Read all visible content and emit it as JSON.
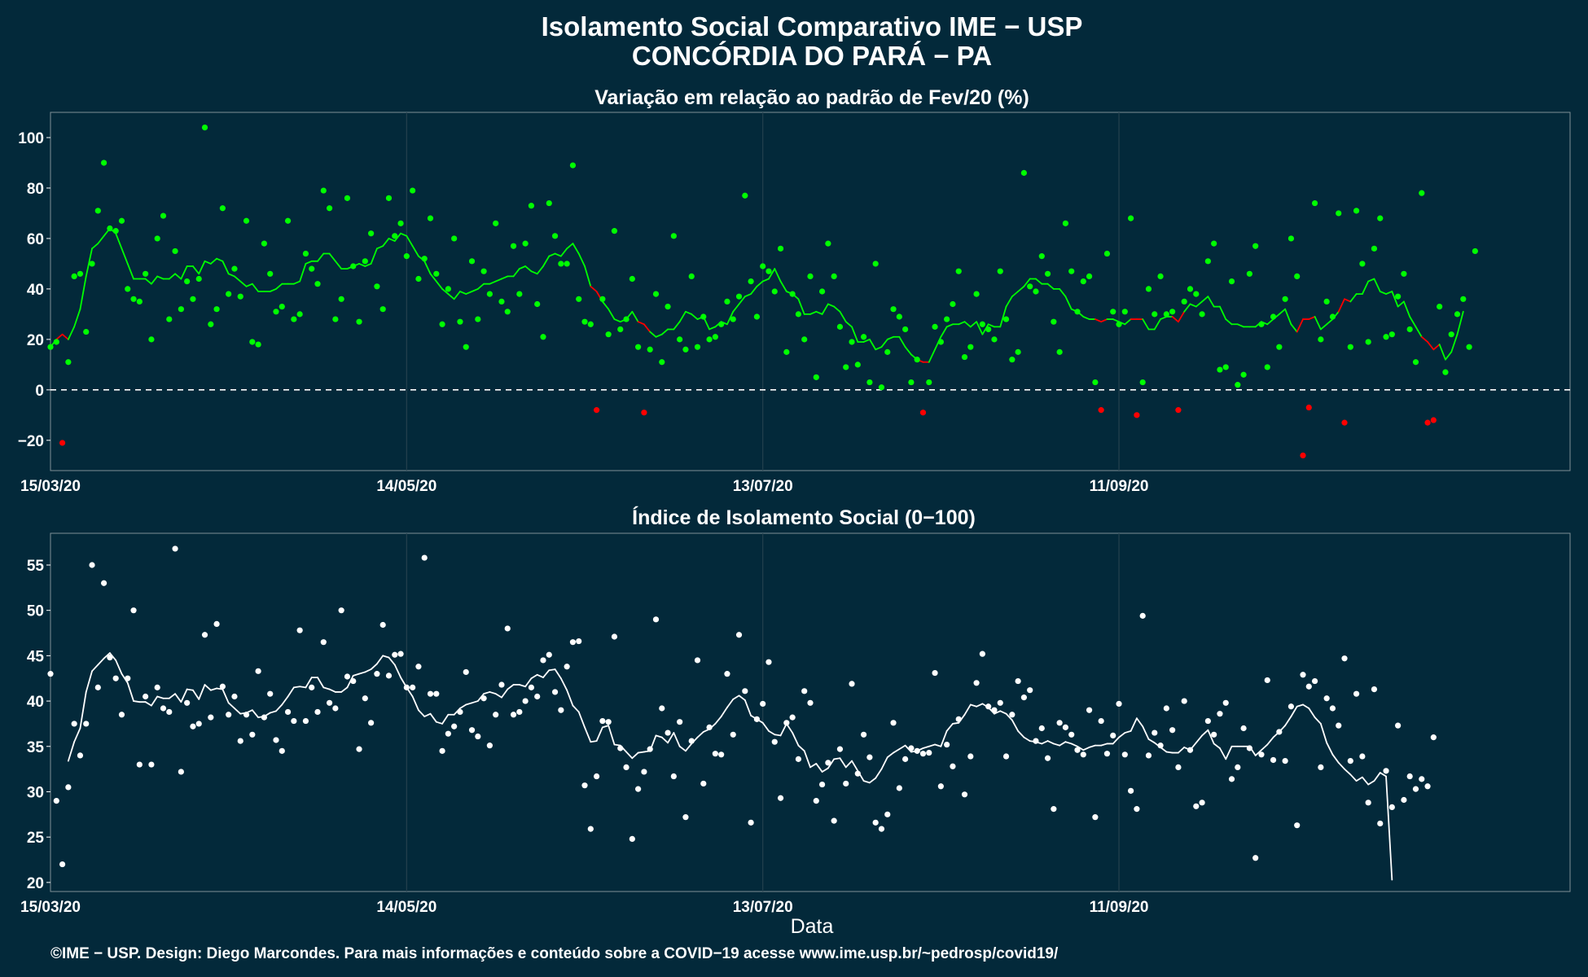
{
  "title_line1": "Isolamento Social Comparativo IME − USP",
  "title_line2": "CONCÓRDIA DO PARÁ − PA",
  "footer": "©IME − USP. Design: Diego Marcondes. Para mais informações e conteúdo sobre a COVID−19 acesse www.ime.usp.br/~pedrosp/covid19/",
  "colors": {
    "background": "#03293a",
    "positive": "#00ff00",
    "negative": "#ff0000",
    "index": "#ffffff",
    "grid": "#24404e"
  },
  "chart_data": [
    {
      "type": "scatter",
      "title": "Variação em relação ao padrão de Fev/20 (%)",
      "xlabel": "",
      "ylabel": "",
      "x_start": "2020-03-15",
      "x_end": "2020-11-26",
      "xticks": [
        "15/03/20",
        "14/05/20",
        "13/07/20",
        "11/09/20"
      ],
      "ylim": [
        -32,
        110
      ],
      "yticks": [
        -20,
        0,
        20,
        40,
        60,
        80,
        100
      ],
      "reference_line": 0,
      "grid": true,
      "series": [
        {
          "kind": "points",
          "values": [
            17,
            19,
            -21,
            11,
            45,
            46,
            23,
            50,
            71,
            90,
            64,
            63,
            67,
            40,
            36,
            35,
            46,
            20,
            60,
            69,
            28,
            55,
            32,
            43,
            36,
            44,
            104,
            26,
            32,
            72,
            38,
            48,
            37,
            67,
            19,
            18,
            58,
            46,
            31,
            33,
            67,
            28,
            30,
            54,
            48,
            42,
            79,
            72,
            28,
            36,
            76,
            49,
            27,
            51,
            62,
            41,
            32,
            76,
            61,
            66,
            53,
            79,
            44,
            52,
            68,
            46,
            26,
            40,
            60,
            27,
            17,
            51,
            28,
            47,
            38,
            66,
            35,
            31,
            57,
            38,
            58,
            73,
            34,
            21,
            74,
            61,
            50,
            50,
            89,
            36,
            27,
            26,
            -8,
            36,
            22,
            63,
            24,
            28,
            44,
            17,
            -9,
            16,
            38,
            11,
            33,
            61,
            20,
            16,
            45,
            17,
            29,
            20,
            21,
            26,
            35,
            28,
            37,
            77,
            43,
            29,
            49,
            47,
            39,
            56,
            15,
            38,
            30,
            20,
            45,
            5,
            39,
            58,
            45,
            25,
            9,
            19,
            10,
            21,
            3,
            50,
            1,
            15,
            32,
            29,
            24,
            3,
            12,
            -9,
            3,
            25,
            19,
            28,
            34,
            47,
            13,
            17,
            38,
            26,
            24,
            20,
            47,
            28,
            12,
            15,
            86,
            41,
            39,
            53,
            46,
            27,
            15,
            66,
            47,
            31,
            43,
            45,
            3,
            -8,
            54,
            31,
            26,
            31,
            68,
            -10,
            3,
            40,
            30,
            45,
            30,
            31,
            -8,
            35,
            40,
            38,
            30,
            51,
            58,
            8,
            9,
            43,
            2,
            6,
            46,
            57,
            26,
            9,
            29,
            17,
            36,
            60,
            45,
            -26,
            -7,
            74,
            20,
            35,
            29,
            70,
            -13,
            17,
            71,
            50,
            19,
            56,
            68,
            21,
            22,
            37,
            46,
            24,
            11,
            78,
            -13,
            -12,
            33,
            7,
            22,
            30,
            36,
            17,
            55
          ]
        },
        {
          "kind": "line",
          "name": "",
          "values": [
            17,
            20,
            22,
            20,
            25,
            32,
            45,
            56,
            58,
            61,
            64,
            62,
            56,
            50,
            44,
            44,
            44,
            42,
            45,
            44,
            44,
            46,
            44,
            49,
            49,
            46,
            51,
            50,
            52,
            51,
            46,
            45,
            43,
            41,
            42,
            39,
            39,
            39,
            40,
            42,
            42,
            42,
            43,
            50,
            51,
            51,
            54,
            54,
            51,
            48,
            48,
            49,
            50,
            49,
            50,
            56,
            57,
            60,
            59,
            62,
            61,
            57,
            53,
            51,
            46,
            43,
            40,
            38,
            36,
            39,
            38,
            39,
            40,
            42,
            42,
            43,
            44,
            45,
            45,
            48,
            49,
            47,
            46,
            49,
            53,
            54,
            53,
            56,
            58,
            54,
            49,
            41,
            39,
            35,
            32,
            28,
            27,
            28,
            31,
            27,
            26,
            23,
            21,
            22,
            24,
            24,
            27,
            31,
            30,
            28,
            29,
            24,
            25,
            27,
            26,
            31,
            34,
            37,
            38,
            41,
            43,
            44,
            48,
            43,
            39,
            38,
            36,
            30,
            30,
            31,
            30,
            34,
            33,
            31,
            27,
            25,
            19,
            19,
            20,
            16,
            17,
            20,
            21,
            21,
            17,
            14,
            12,
            11,
            11,
            16,
            21,
            25,
            26,
            26,
            27,
            25,
            27,
            22,
            26,
            25,
            25,
            33,
            37,
            39,
            41,
            44,
            44,
            42,
            42,
            40,
            40,
            37,
            32,
            31,
            29,
            28,
            28,
            27,
            28,
            28,
            27,
            26,
            28,
            28,
            28,
            24,
            24,
            28,
            29,
            29,
            27,
            31,
            34,
            33,
            35,
            37,
            33,
            33,
            28,
            26,
            26,
            25,
            25,
            25,
            27,
            26,
            28,
            30,
            32,
            26,
            23,
            28,
            28,
            29,
            24,
            26,
            28,
            31,
            36,
            35,
            38,
            38,
            43,
            44,
            39,
            38,
            39,
            33,
            35,
            29,
            25,
            21,
            19,
            16,
            18,
            12,
            15,
            22,
            31
          ]
        }
      ]
    },
    {
      "type": "scatter",
      "title": "Índice de Isolamento Social (0−100)",
      "xlabel": "Data",
      "ylabel": "",
      "x_start": "2020-03-15",
      "x_end": "2020-11-26",
      "xticks": [
        "15/03/20",
        "14/05/20",
        "13/07/20",
        "11/09/20"
      ],
      "ylim": [
        19,
        58.5
      ],
      "yticks": [
        20,
        25,
        30,
        35,
        40,
        45,
        50,
        55
      ],
      "grid": true,
      "series": [
        {
          "kind": "points",
          "values": [
            43,
            29,
            22,
            30.5,
            37.5,
            34,
            37.5,
            55,
            41.5,
            53,
            44.8,
            42.5,
            38.5,
            42.5,
            50,
            33,
            40.5,
            33,
            41.5,
            39.2,
            38.8,
            56.8,
            32.2,
            39.8,
            37.2,
            37.5,
            47.3,
            38.2,
            48.5,
            41.6,
            38.5,
            40.5,
            35.6,
            38.5,
            36.3,
            43.3,
            38.2,
            40.8,
            35.7,
            34.5,
            38.8,
            37.8,
            47.8,
            37.8,
            41.5,
            38.8,
            46.5,
            39.8,
            39.2,
            50,
            42.7,
            42.2,
            34.7,
            40.3,
            37.6,
            43,
            48.4,
            42.8,
            45.1,
            45.2,
            41.5,
            41.5,
            43.8,
            55.8,
            40.8,
            40.8,
            34.5,
            36.4,
            37.2,
            38.8,
            43.2,
            36.8,
            36.1,
            40.3,
            35.1,
            38.5,
            41.8,
            48,
            38.5,
            38.8,
            40,
            41.5,
            40.5,
            44.5,
            45.1,
            41,
            39,
            43.8,
            46.5,
            46.6,
            30.7,
            25.9,
            31.7,
            37.8,
            37.7,
            47.1,
            34.8,
            32.7,
            24.8,
            30.3,
            32.2,
            34.7,
            49,
            39.2,
            36.5,
            31.7,
            37.7,
            27.2,
            35.6,
            44.5,
            30.9,
            37.1,
            34.2,
            34.1,
            43,
            36.3,
            47.3,
            41.1,
            26.6,
            38,
            39.7,
            44.3,
            35.5,
            29.3,
            37.6,
            38.2,
            33.6,
            41.1,
            39.8,
            29,
            30.8,
            33.2,
            26.8,
            34.7,
            30.9,
            41.9,
            32,
            36.3,
            33.8,
            26.6,
            25.9,
            27.5,
            37.6,
            30.4,
            33.6,
            34.8,
            34.5,
            34.2,
            34.3,
            43.1,
            30.6,
            35.2,
            32.8,
            38,
            29.7,
            33.9,
            42,
            45.2,
            39.4,
            39,
            39.8,
            33.9,
            38.5,
            42.2,
            40.4,
            41.2,
            35.6,
            37,
            33.7,
            28.1,
            37.6,
            37.1,
            36.3,
            34.6,
            34.1,
            39,
            27.2,
            37.8,
            34.2,
            36.2,
            39.7,
            34.1,
            30.1,
            28.1,
            49.4,
            34,
            36.5,
            35.1,
            39.2,
            36.8,
            32.7,
            40,
            34.6,
            28.4,
            28.8,
            37.8,
            36.3,
            38.6,
            39.8,
            31.4,
            32.7,
            37,
            34.8,
            22.7,
            34.1,
            42.3,
            33.5,
            36.6,
            33.4,
            39.4,
            26.3,
            42.9,
            41.6,
            42.2,
            32.7,
            40.3,
            39.2,
            37.3,
            44.7,
            33.4,
            40.8,
            33.9,
            28.8,
            41.3,
            26.5,
            32.3,
            28.3,
            37.3,
            29.1,
            31.7,
            30.3,
            31.4,
            30.6,
            36
          ]
        },
        {
          "kind": "line",
          "name": "",
          "values": [
            null,
            null,
            null,
            33.4,
            35.5,
            37,
            41,
            43.3,
            44,
            44.7,
            45.3,
            44.5,
            43,
            42,
            40,
            39.9,
            39.9,
            39.5,
            40.5,
            40.3,
            40.3,
            40.8,
            39.9,
            41.3,
            41.2,
            40.2,
            41.8,
            41.2,
            41.4,
            41.3,
            39.8,
            39.2,
            38.6,
            38.7,
            39,
            38.2,
            38.3,
            38.7,
            38.9,
            39.6,
            40.5,
            41.5,
            41.6,
            41.5,
            42.6,
            42.6,
            41.5,
            41.3,
            41,
            41,
            41.5,
            42.8,
            43,
            43.2,
            43.5,
            44.1,
            45,
            44.8,
            44,
            42.6,
            41.5,
            40.5,
            39,
            38.3,
            38.6,
            37.7,
            37.5,
            38.5,
            38.5,
            39.2,
            39.6,
            39.8,
            40,
            40.8,
            41,
            40.8,
            40.4,
            41.3,
            41.8,
            41.8,
            41.6,
            42.5,
            42.9,
            42.6,
            43.4,
            43.5,
            42.5,
            41.2,
            39.5,
            38.8,
            37.1,
            35.5,
            35.6,
            37.1,
            37.3,
            35.2,
            35.1,
            34.4,
            33.7,
            34.3,
            34.4,
            34.5,
            36.2,
            36,
            35.4,
            36.5,
            35,
            34.5,
            35.3,
            36,
            36.6,
            36.9,
            37.5,
            38.3,
            39.3,
            40.2,
            40.6,
            40.1,
            38.4,
            38,
            37.6,
            36.7,
            36.3,
            36.2,
            37.5,
            36.5,
            35.1,
            34.5,
            32.7,
            33.1,
            32.2,
            32.6,
            33.6,
            33.7,
            32.7,
            33.4,
            32.3,
            31.2,
            31,
            31.5,
            32.5,
            33.8,
            34.3,
            34.7,
            35.1,
            34.4,
            34.5,
            34.8,
            35,
            35.2,
            35,
            36.7,
            37.5,
            37.6,
            38.5,
            39.6,
            39.4,
            39.7,
            39.3,
            38.6,
            38.9,
            38.6,
            37.9,
            36.7,
            36,
            35.6,
            35.5,
            35.3,
            35.6,
            35.3,
            35.1,
            35.5,
            35.3,
            35,
            34.6,
            34.9,
            35.1,
            35.1,
            35.3,
            35.3,
            36,
            36.5,
            36.7,
            38.1,
            37.2,
            35.8,
            35.4,
            34.9,
            34.4,
            34.3,
            34.3,
            34.9,
            34.6,
            35.4,
            36.2,
            36.8,
            35.3,
            34.8,
            33.6,
            35,
            35,
            35,
            35,
            34,
            34.6,
            35.2,
            36,
            36.6,
            37.3,
            38.3,
            39.4,
            39.6,
            39.2,
            38.2,
            37.5,
            35.4,
            34.1,
            33.2,
            32.5,
            31.9,
            31.2,
            31.6,
            30.8,
            31.2,
            32.1,
            31.7,
            20.3
          ]
        }
      ]
    }
  ]
}
